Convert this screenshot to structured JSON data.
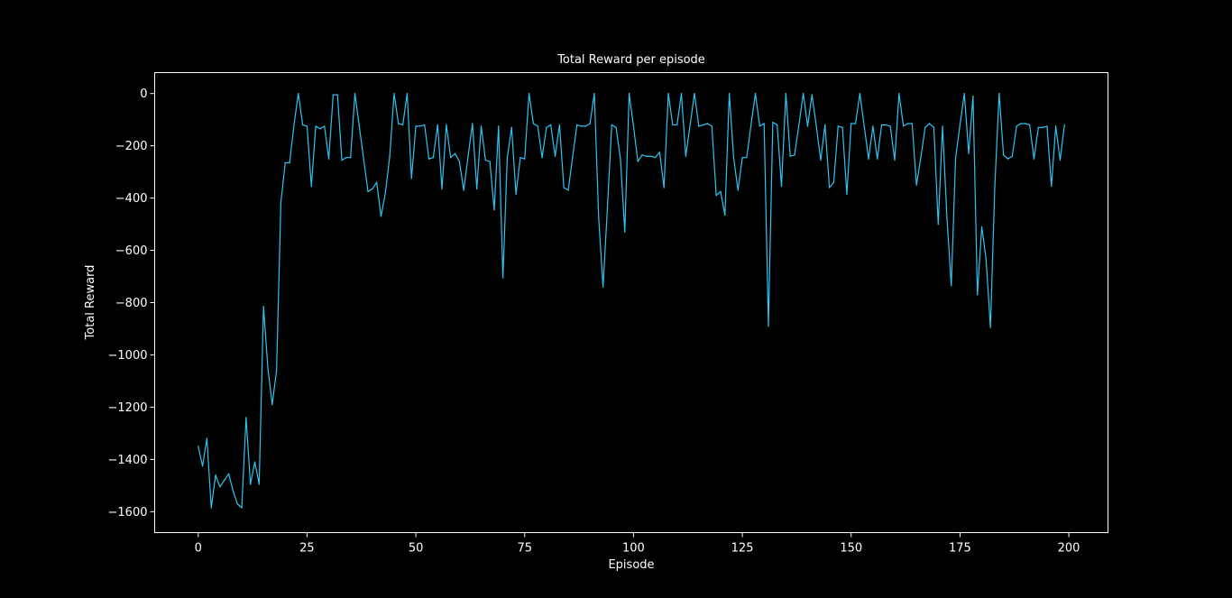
{
  "chart_data": {
    "type": "line",
    "title": "Total Reward per episode",
    "xlabel": "Episode",
    "ylabel": "Total Reward",
    "xlim": [
      -10,
      209
    ],
    "ylim": [
      -1680,
      80
    ],
    "xticks": [
      0,
      25,
      50,
      75,
      100,
      125,
      150,
      175,
      200
    ],
    "yticks": [
      0,
      -200,
      -400,
      -600,
      -800,
      -1000,
      -1200,
      -1400,
      -1600
    ],
    "xtick_labels": [
      "0",
      "25",
      "50",
      "75",
      "100",
      "125",
      "150",
      "175",
      "200"
    ],
    "ytick_labels": [
      "0",
      "−200",
      "−400",
      "−600",
      "−800",
      "−1000",
      "−1200",
      "−1400",
      "−1600"
    ],
    "grid": false,
    "colors": {
      "background": "#000000",
      "line": "#2ec4f0",
      "axes": "#ffffff",
      "text": "#ffffff"
    },
    "series": [
      {
        "values": [
          -1350,
          -1425,
          -1320,
          -1585,
          -1460,
          -1505,
          -1480,
          -1455,
          -1520,
          -1570,
          -1585,
          -1240,
          -1495,
          -1410,
          -1495,
          -815,
          -1050,
          -1190,
          -1060,
          -415,
          -265,
          -265,
          -120,
          0,
          -120,
          -125,
          -355,
          -125,
          -135,
          -125,
          -250,
          -5,
          -5,
          -255,
          -245,
          -245,
          0,
          -125,
          -250,
          -375,
          -365,
          -340,
          -470,
          -380,
          -240,
          0,
          -115,
          -120,
          0,
          -325,
          -125,
          -125,
          -120,
          -250,
          -245,
          -120,
          -365,
          -120,
          -245,
          -230,
          -260,
          -370,
          -240,
          -115,
          -365,
          -125,
          -255,
          -260,
          -445,
          -125,
          -705,
          -245,
          -130,
          -385,
          -245,
          -250,
          0,
          -115,
          -125,
          -245,
          -130,
          -120,
          -240,
          -120,
          -360,
          -370,
          -245,
          -120,
          -125,
          -125,
          -115,
          0,
          -475,
          -740,
          -440,
          -120,
          -130,
          -250,
          -530,
          0,
          -125,
          -260,
          -235,
          -240,
          -240,
          -245,
          -225,
          -360,
          0,
          -120,
          -120,
          0,
          -240,
          -120,
          0,
          -125,
          -120,
          -115,
          -125,
          -390,
          -375,
          -465,
          0,
          -245,
          -370,
          -245,
          -245,
          -120,
          0,
          -125,
          -115,
          -890,
          -110,
          -120,
          -355,
          0,
          -240,
          -235,
          -120,
          0,
          -125,
          -5,
          -125,
          -255,
          -120,
          -360,
          -340,
          -125,
          -130,
          -385,
          -115,
          -115,
          0,
          -125,
          -250,
          -125,
          -250,
          -120,
          -120,
          -125,
          -255,
          0,
          -125,
          -115,
          -115,
          -350,
          -245,
          -130,
          -115,
          -130,
          -500,
          -125,
          -475,
          -735,
          -245,
          -120,
          0,
          -230,
          -10,
          -770,
          -510,
          -635,
          -895,
          -355,
          0,
          -235,
          -250,
          -240,
          -125,
          -115,
          -115,
          -120,
          -250,
          -130,
          -130,
          -125,
          -355,
          -125,
          -255,
          -120
        ]
      }
    ]
  }
}
